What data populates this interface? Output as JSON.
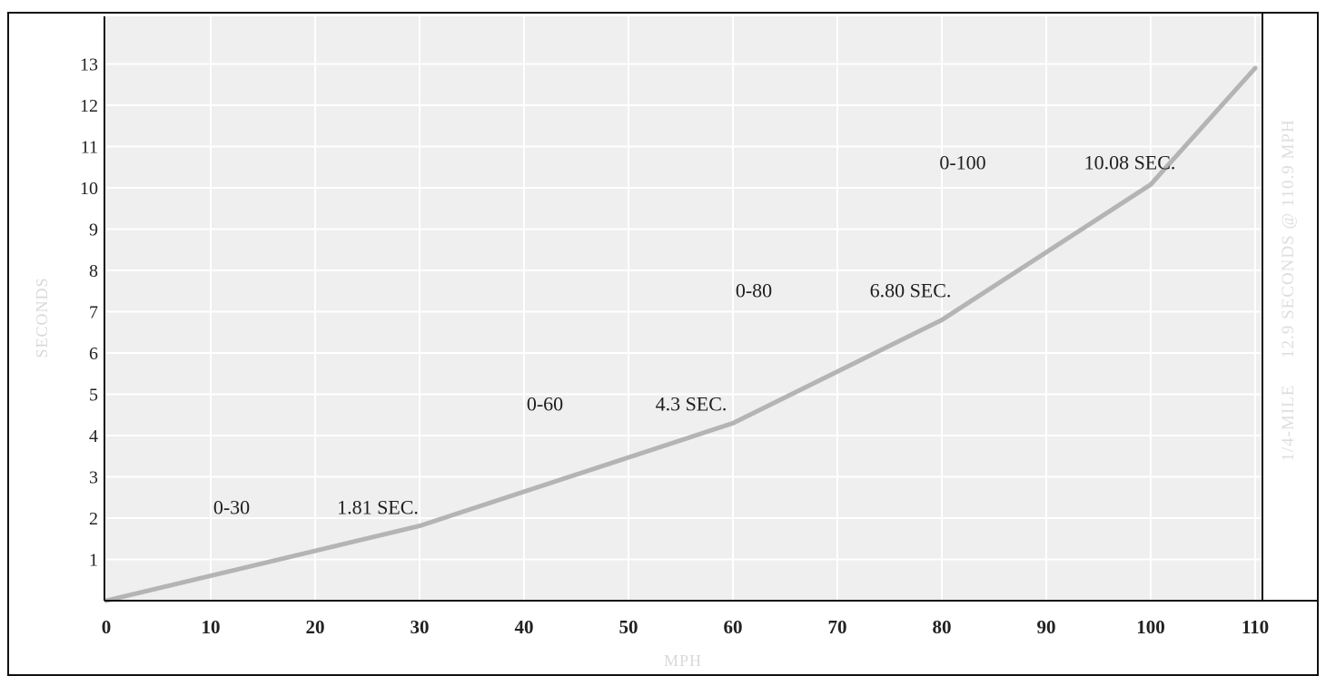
{
  "chart_data": {
    "type": "line",
    "xlabel": "MPH",
    "ylabel": "SECONDS",
    "x_ticks": [
      "0",
      "10",
      "20",
      "30",
      "40",
      "50",
      "60",
      "70",
      "80",
      "90",
      "100",
      "110"
    ],
    "y_ticks": [
      "1",
      "2",
      "3",
      "4",
      "5",
      "6",
      "7",
      "8",
      "9",
      "10",
      "11",
      "12",
      "13"
    ],
    "xlim": [
      0,
      110
    ],
    "ylim": [
      0,
      13.3
    ],
    "grid": true,
    "series": [
      {
        "points": [
          {
            "x": 0,
            "y": 0
          },
          {
            "x": 30,
            "y": 1.81
          },
          {
            "x": 60,
            "y": 4.3
          },
          {
            "x": 80,
            "y": 6.8
          },
          {
            "x": 100,
            "y": 10.08
          },
          {
            "x": 110,
            "y": 12.9
          }
        ]
      }
    ],
    "annotations": [
      {
        "range": "0-30",
        "time": "1.81 SEC.",
        "range_x": 12,
        "time_x": 26,
        "y": 2.1
      },
      {
        "range": "0-60",
        "time": "4.3 SEC.",
        "range_x": 42,
        "time_x": 56,
        "y": 4.6
      },
      {
        "range": "0-80",
        "time": "6.80 SEC.",
        "range_x": 62,
        "time_x": 77,
        "y": 7.35
      },
      {
        "range": "0-100",
        "time": "10.08 SEC.",
        "range_x": 82,
        "time_x": 98,
        "y": 10.45
      }
    ],
    "side_note": "1/4-MILE     12.9 SECONDS @ 110.9 MPH",
    "colors": {
      "plot_background": "#efefef",
      "grid": "#ffffff",
      "line": "#b4b4b4",
      "frame": "#111111",
      "tick_text": "#222222",
      "axis_title": "#d9d9d9"
    }
  }
}
